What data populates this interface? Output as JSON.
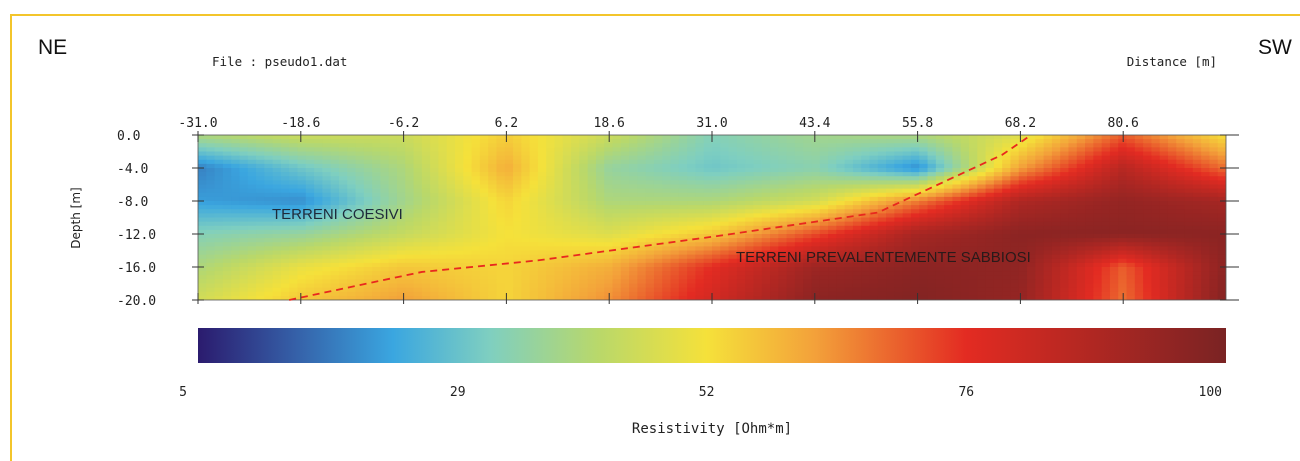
{
  "labels": {
    "left_direction": "NE",
    "right_direction": "SW",
    "file": "File : pseudo1.dat",
    "distance": "Distance [m]",
    "depth": "Depth [m]",
    "resistivity": "Resistivity [Ohm*m]",
    "zone_cohesive": "TERRENI COESIVI",
    "zone_sandy": "TERRENI PREVALENTEMENTE SABBIOSI"
  },
  "chart_data": {
    "type": "heatmap",
    "title": "",
    "xlabel": "Distance [m]",
    "ylabel": "Depth [m]",
    "x_ticks": [
      "-31.0",
      "-18.6",
      "-6.2",
      "6.2",
      "18.6",
      "31.0",
      "43.4",
      "55.8",
      "68.2",
      "80.6"
    ],
    "y_ticks": [
      "0.0",
      "-4.0",
      "-8.0",
      "-12.0",
      "-16.0",
      "-20.0"
    ],
    "xlim": [
      -31.0,
      93.0
    ],
    "ylim": [
      -20.0,
      0.0
    ],
    "colorbar": {
      "label": "Resistivity [Ohm*m]",
      "tick_labels": [
        "5",
        "29",
        "52",
        "76",
        "100"
      ],
      "range": [
        5,
        100
      ],
      "stops": [
        {
          "v": 5,
          "color": "#2b1b6e"
        },
        {
          "v": 14,
          "color": "#3560a8"
        },
        {
          "v": 23,
          "color": "#3aa6e0"
        },
        {
          "v": 32,
          "color": "#7fcfc0"
        },
        {
          "v": 42,
          "color": "#b9d86a"
        },
        {
          "v": 52,
          "color": "#f5e13a"
        },
        {
          "v": 62,
          "color": "#f3a13a"
        },
        {
          "v": 76,
          "color": "#e32b22"
        },
        {
          "v": 100,
          "color": "#7a2323"
        }
      ]
    },
    "resistivity_grid_ohm_m": {
      "x": [
        -31.0,
        -18.6,
        -6.2,
        6.2,
        18.6,
        31.0,
        43.4,
        55.8,
        68.2,
        80.6,
        93.0
      ],
      "depth": [
        0,
        -4,
        -8,
        -12,
        -16,
        -20
      ],
      "values": [
        [
          40,
          45,
          45,
          55,
          45,
          33,
          38,
          40,
          48,
          70,
          52
        ],
        [
          18,
          30,
          40,
          60,
          36,
          30,
          34,
          20,
          62,
          86,
          68
        ],
        [
          22,
          20,
          38,
          54,
          40,
          40,
          46,
          66,
          88,
          94,
          90
        ],
        [
          33,
          36,
          44,
          52,
          48,
          56,
          72,
          90,
          96,
          96,
          96
        ],
        [
          40,
          50,
          56,
          54,
          60,
          76,
          92,
          96,
          95,
          70,
          96
        ],
        [
          46,
          56,
          62,
          54,
          64,
          80,
          96,
          98,
          94,
          68,
          98
        ]
      ]
    },
    "boundary_line": {
      "style": "dashed",
      "color": "#e8281e",
      "points": [
        [
          -20,
          -20
        ],
        [
          -4,
          -16.6
        ],
        [
          10,
          -15.2
        ],
        [
          32,
          -12.2
        ],
        [
          51,
          -9.4
        ],
        [
          66,
          -2.4
        ],
        [
          69.5,
          0
        ]
      ]
    },
    "grid": false,
    "legend": "none"
  }
}
